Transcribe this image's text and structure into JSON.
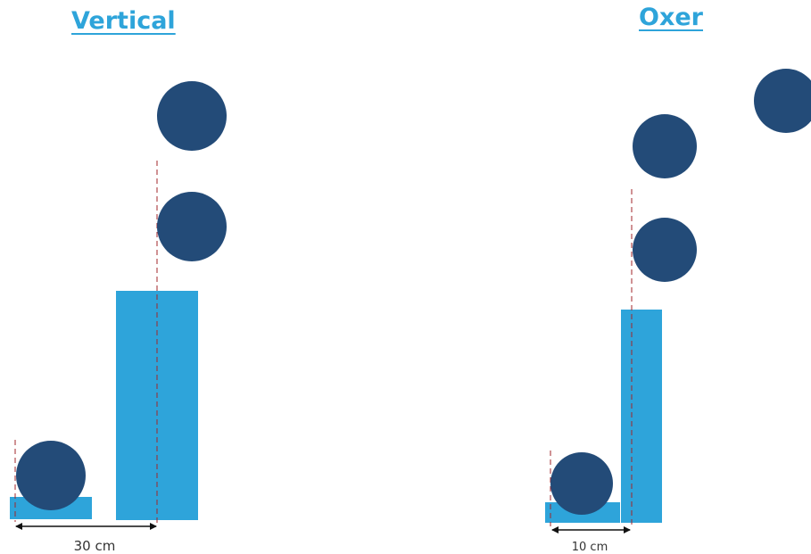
{
  "colors": {
    "title": "#2ea4da",
    "bar": "#2ea4da",
    "circle": "#234b78",
    "guide_line": "#a0262a",
    "arrow": "#111111",
    "text": "#333333"
  },
  "vertical": {
    "title": "Vertical",
    "distance_label": "30 cm"
  },
  "oxer": {
    "title": "Oxer",
    "distance_label": "10 cm"
  }
}
